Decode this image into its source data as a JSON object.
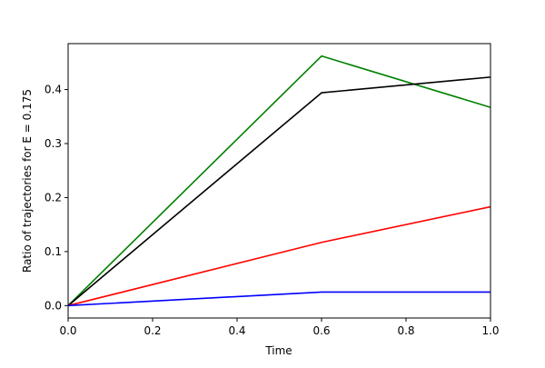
{
  "chart_data": {
    "type": "line",
    "title": "",
    "xlabel": "Time",
    "ylabel": "Ratio of trajectories for E = 0.175",
    "xlim": [
      0.0,
      1.0
    ],
    "ylim": [
      -0.023,
      0.485
    ],
    "x_ticks": [
      "0.0",
      "0.2",
      "0.4",
      "0.6",
      "0.8",
      "1.0"
    ],
    "y_ticks": [
      "0.0",
      "0.1",
      "0.2",
      "0.3",
      "0.4"
    ],
    "grid": false,
    "legend": "none",
    "series": [
      {
        "color": "#008000",
        "x": [
          0.0,
          0.6,
          1.0
        ],
        "y": [
          0.0,
          0.462,
          0.367
        ]
      },
      {
        "color": "#000000",
        "x": [
          0.0,
          0.6,
          1.0
        ],
        "y": [
          0.0,
          0.394,
          0.423
        ]
      },
      {
        "color": "#ff0000",
        "x": [
          0.0,
          0.6,
          1.0
        ],
        "y": [
          0.0,
          0.117,
          0.183
        ]
      },
      {
        "color": "#0000ff",
        "x": [
          0.0,
          0.6,
          1.0
        ],
        "y": [
          0.0,
          0.025,
          0.025
        ]
      }
    ]
  }
}
